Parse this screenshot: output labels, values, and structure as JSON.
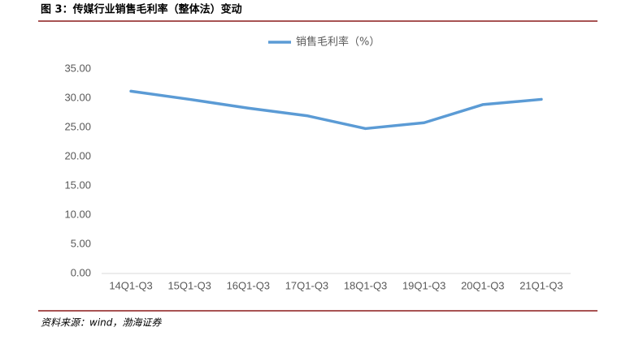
{
  "chart_data": {
    "type": "line",
    "title": "图 3：传媒行业销售毛利率（整体法）变动",
    "source": "资料来源：wind，渤海证券",
    "categories": [
      "14Q1-Q3",
      "15Q1-Q3",
      "16Q1-Q3",
      "17Q1-Q3",
      "18Q1-Q3",
      "19Q1-Q3",
      "20Q1-Q3",
      "21Q1-Q3"
    ],
    "series": [
      {
        "name": "销售毛利率（%）",
        "color": "#5b9bd5",
        "values": [
          31.2,
          29.8,
          28.3,
          27.0,
          24.8,
          25.8,
          28.9,
          29.8
        ]
      }
    ],
    "ylim": [
      0,
      35
    ],
    "yticks": [
      {
        "value": 0,
        "label": "0.00"
      },
      {
        "value": 5,
        "label": "5.00"
      },
      {
        "value": 10,
        "label": "10.00"
      },
      {
        "value": 15,
        "label": "15.00"
      },
      {
        "value": 20,
        "label": "20.00"
      },
      {
        "value": 25,
        "label": "25.00"
      },
      {
        "value": 30,
        "label": "30.00"
      },
      {
        "value": 35,
        "label": "35.00"
      }
    ],
    "legend": "top"
  }
}
